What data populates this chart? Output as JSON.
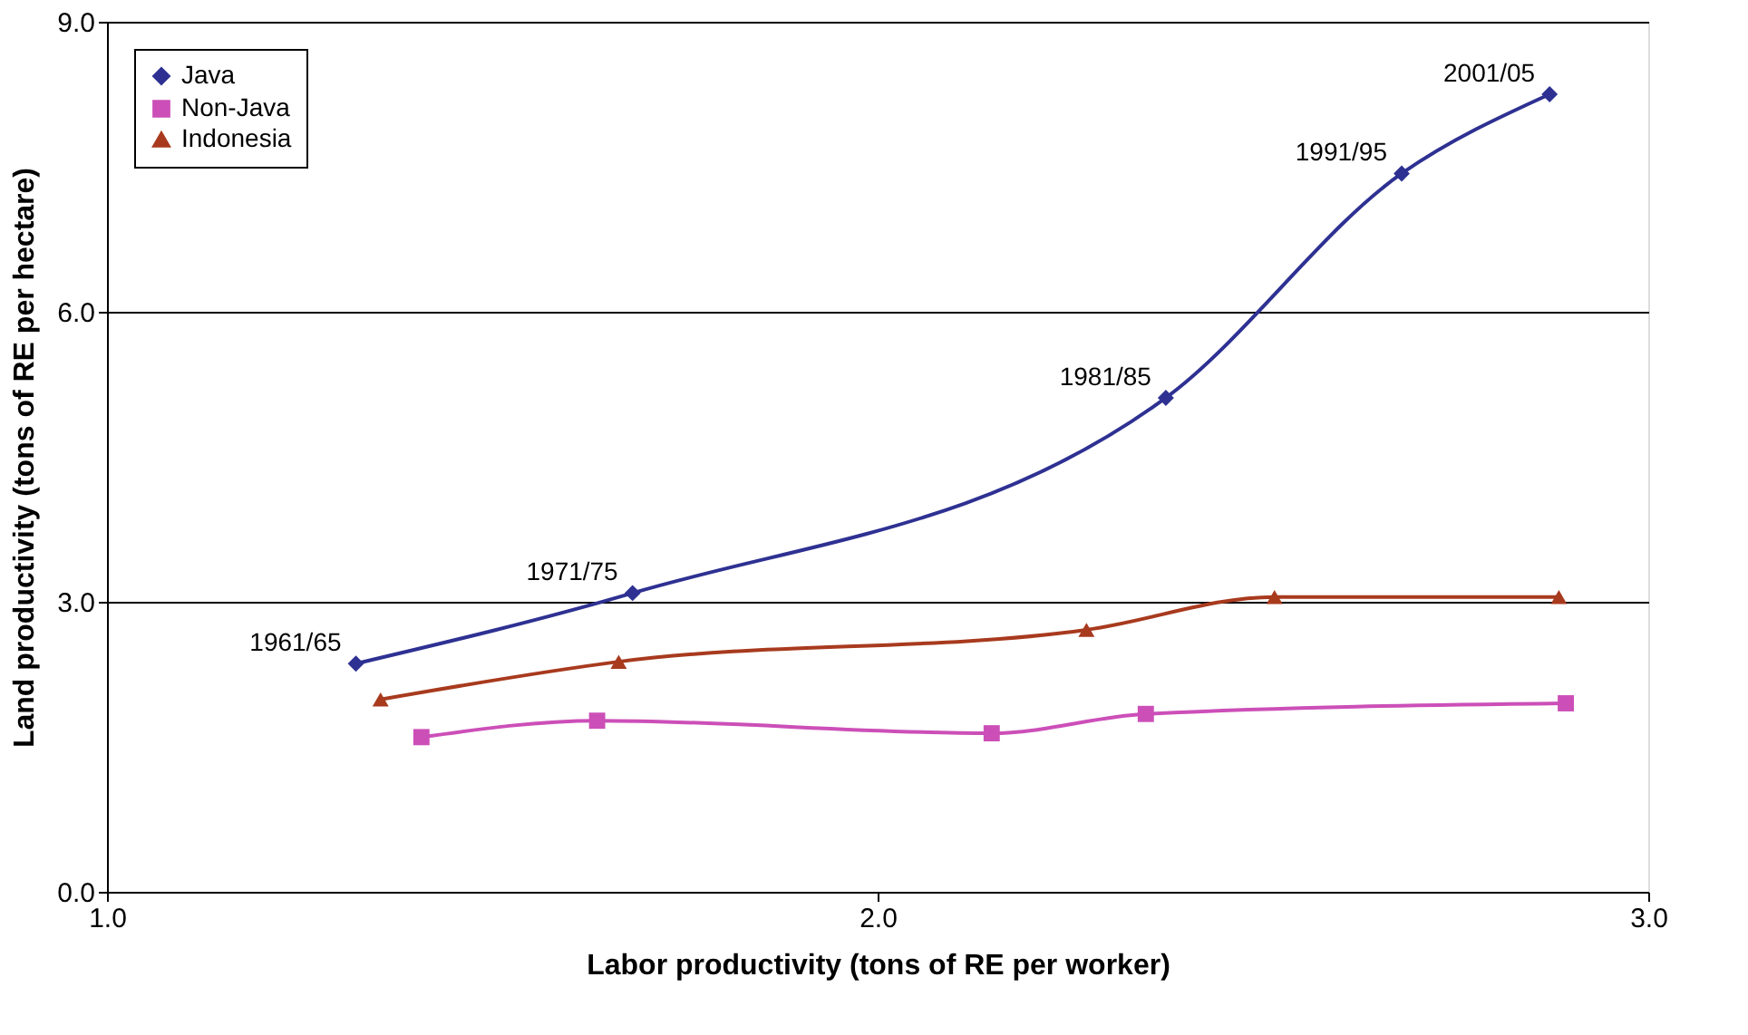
{
  "chart_data": {
    "type": "line",
    "xlabel": "Labor productivity (tons of RE per worker)",
    "ylabel": "Land productivity (tons of RE per hectare)",
    "xlim": [
      1.0,
      3.0
    ],
    "xticks": [
      {
        "value": 1,
        "label": "1.0"
      },
      {
        "value": 2,
        "label": "2.0"
      },
      {
        "value": 3,
        "label": "3.0"
      }
    ],
    "ylim": [
      0,
      9
    ],
    "yticks": [
      {
        "value": 0,
        "label": "0.0"
      },
      {
        "value": 3,
        "label": "3.0"
      },
      {
        "value": 6,
        "label": "6.0"
      },
      {
        "value": 9,
        "label": "9.0"
      }
    ],
    "grid": "y",
    "legend": "top left",
    "line_style": "solid",
    "series": [
      {
        "name": "Java",
        "color": "#2e3192",
        "marker": "diamond",
        "x": [
          1.323,
          1.682,
          2.374,
          2.68,
          2.872
        ],
        "values": [
          2.36,
          3.09,
          5.11,
          7.43,
          8.25
        ]
      },
      {
        "name": "Non-Java",
        "color": "#cc4fb8",
        "marker": "square",
        "x": [
          1.408,
          1.636,
          2.148,
          2.348,
          2.893
        ],
        "values": [
          1.6,
          1.77,
          1.64,
          1.84,
          1.95
        ]
      },
      {
        "name": "Indonesia",
        "color": "#a83a1e",
        "marker": "triangle",
        "x": [
          1.355,
          1.664,
          2.271,
          2.515,
          2.884
        ],
        "values": [
          1.99,
          2.38,
          2.71,
          3.05,
          3.05
        ]
      }
    ],
    "annotations": [
      {
        "text": "1961/65",
        "x": 1.323,
        "y": 2.36
      },
      {
        "text": "1971/75",
        "x": 1.682,
        "y": 3.09
      },
      {
        "text": "1981/85",
        "x": 2.374,
        "y": 5.11
      },
      {
        "text": "1991/95",
        "x": 2.68,
        "y": 7.43
      },
      {
        "text": "2001/05",
        "x": 2.872,
        "y": 8.25
      }
    ]
  }
}
